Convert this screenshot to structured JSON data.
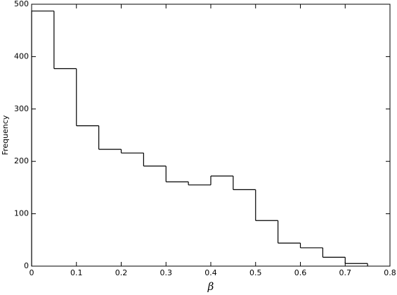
{
  "chart_data": {
    "type": "histogram",
    "bins": [
      0,
      0.05,
      0.1,
      0.15,
      0.2,
      0.25,
      0.3,
      0.35,
      0.4,
      0.45,
      0.5,
      0.55,
      0.6,
      0.65,
      0.7,
      0.75
    ],
    "values": [
      487,
      377,
      268,
      223,
      216,
      191,
      161,
      155,
      172,
      146,
      87,
      44,
      35,
      17,
      5
    ],
    "color": "#000000",
    "xlabel": "β",
    "ylabel": "Frequency",
    "xlim": [
      0,
      0.8
    ],
    "xticks": [
      0,
      0.1,
      0.2,
      0.3,
      0.4,
      0.5,
      0.6,
      0.7,
      0.8
    ],
    "ylim": [
      0,
      500
    ],
    "yticks": [
      0,
      100,
      200,
      300,
      400,
      500
    ]
  }
}
